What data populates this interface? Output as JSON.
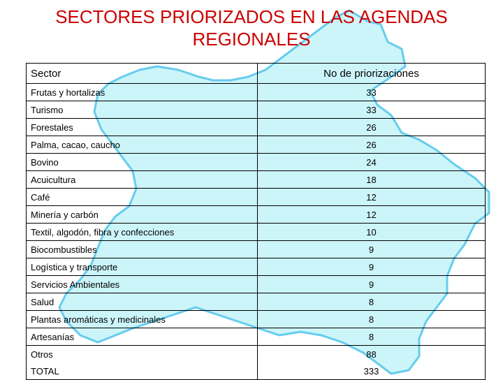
{
  "title": {
    "line1": "SECTORES PRIORIZADOS  EN LAS AGENDAS",
    "line2": "REGIONALES"
  },
  "table": {
    "headers": {
      "sector": "Sector",
      "count": "No de priorizaciones"
    },
    "rows": [
      {
        "sector": "Frutas y hortalizas",
        "count": "33"
      },
      {
        "sector": "Turismo",
        "count": "33"
      },
      {
        "sector": "Forestales",
        "count": "26"
      },
      {
        "sector": "Palma, cacao, caucho",
        "count": "26"
      },
      {
        "sector": "Bovino",
        "count": "24"
      },
      {
        "sector": "Acuicultura",
        "count": "18"
      },
      {
        "sector": "Café",
        "count": "12"
      },
      {
        "sector": "Minería y carbón",
        "count": "12"
      },
      {
        "sector": "Textil, algodón, fibra y confecciones",
        "count": "10"
      },
      {
        "sector": "Biocombustibles",
        "count": "9"
      },
      {
        "sector": "Logística y transporte",
        "count": "9"
      },
      {
        "sector": "Servicios Ambientales",
        "count": "9"
      },
      {
        "sector": "Salud",
        "count": "8"
      },
      {
        "sector": "Plantas aromáticas y medicinales",
        "count": "8"
      },
      {
        "sector": "Artesanías",
        "count": "8"
      },
      {
        "sector": "Otros",
        "count": "88"
      }
    ],
    "total": {
      "label": "TOTAL",
      "count": "333"
    }
  },
  "colors": {
    "title": "#cc0000",
    "map_fill": "#ccf5fa",
    "map_stroke": "#66ccee"
  },
  "background_icon": "colombia-map-icon"
}
